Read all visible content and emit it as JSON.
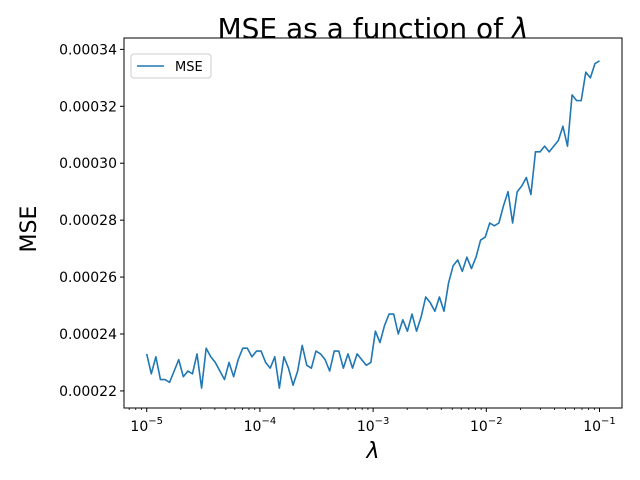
{
  "chart_data": {
    "type": "line",
    "title_text": "MSE as a function of ",
    "title_symbol": "λ",
    "xlabel": "λ",
    "ylabel": "MSE",
    "xscale": "log",
    "xlim": [
      6.3e-06,
      0.158
    ],
    "ylim": [
      0.000214,
      0.000344
    ],
    "xticks": [
      {
        "base": "10",
        "exp": "−5",
        "value": 1e-05
      },
      {
        "base": "10",
        "exp": "−4",
        "value": 0.0001
      },
      {
        "base": "10",
        "exp": "−3",
        "value": 0.001
      },
      {
        "base": "10",
        "exp": "−2",
        "value": 0.01
      },
      {
        "base": "10",
        "exp": "−1",
        "value": 0.1
      }
    ],
    "yticks": [
      {
        "label": "0.00022",
        "value": 0.00022
      },
      {
        "label": "0.00024",
        "value": 0.00024
      },
      {
        "label": "0.00026",
        "value": 0.00026
      },
      {
        "label": "0.00028",
        "value": 0.00028
      },
      {
        "label": "0.00030",
        "value": 0.0003
      },
      {
        "label": "0.00032",
        "value": 0.00032
      },
      {
        "label": "0.00034",
        "value": 0.00034
      }
    ],
    "grid": false,
    "legend_position": "top-left",
    "series": [
      {
        "name": "MSE",
        "color": "#1f77b4",
        "x_log10_start": -5,
        "x_log10_end": -1,
        "values": [
          0.000233,
          0.000226,
          0.000232,
          0.000224,
          0.000224,
          0.000223,
          0.000227,
          0.000231,
          0.000225,
          0.000227,
          0.000226,
          0.000233,
          0.000221,
          0.000235,
          0.000232,
          0.00023,
          0.000227,
          0.000224,
          0.00023,
          0.000225,
          0.000231,
          0.000235,
          0.000235,
          0.000232,
          0.000234,
          0.000234,
          0.00023,
          0.000228,
          0.000232,
          0.000221,
          0.000232,
          0.000228,
          0.000222,
          0.000227,
          0.000236,
          0.000229,
          0.000228,
          0.000234,
          0.000233,
          0.000231,
          0.000227,
          0.000234,
          0.000234,
          0.000228,
          0.000233,
          0.000228,
          0.000233,
          0.000231,
          0.000229,
          0.00023,
          0.000241,
          0.000237,
          0.000243,
          0.000247,
          0.000247,
          0.00024,
          0.000245,
          0.000241,
          0.000247,
          0.000241,
          0.000246,
          0.000253,
          0.000251,
          0.000248,
          0.000253,
          0.000248,
          0.000258,
          0.000264,
          0.000266,
          0.000262,
          0.000267,
          0.000263,
          0.000267,
          0.000273,
          0.000274,
          0.000279,
          0.000278,
          0.000279,
          0.000285,
          0.00029,
          0.000279,
          0.00029,
          0.000292,
          0.000295,
          0.000289,
          0.000304,
          0.000304,
          0.000306,
          0.000304,
          0.000306,
          0.000308,
          0.000313,
          0.000306,
          0.000324,
          0.000322,
          0.000322,
          0.000332,
          0.00033,
          0.000335,
          0.000336
        ]
      }
    ]
  }
}
